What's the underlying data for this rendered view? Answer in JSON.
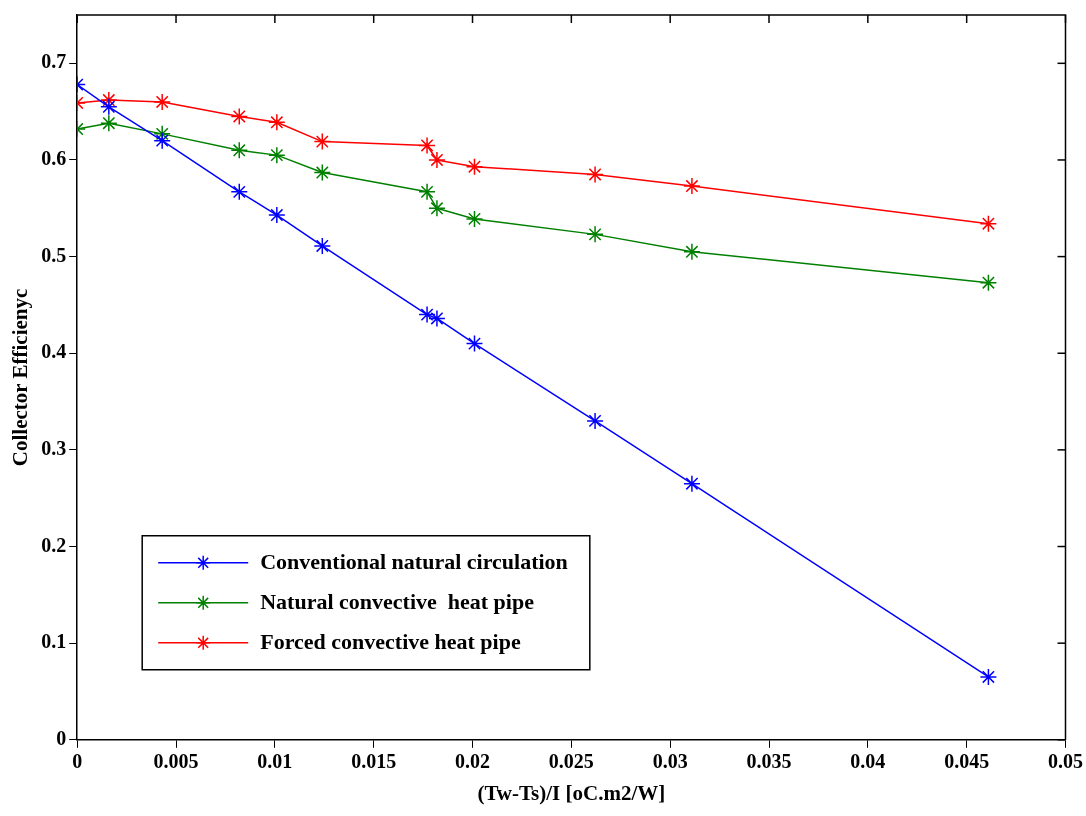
{
  "chart_data": {
    "type": "line",
    "xlabel": "(Tw-Ts)/I [oC.m2/W]",
    "ylabel": "Collector Efficienyc",
    "x": [
      0,
      0.0016,
      0.0043,
      0.0082,
      0.0101,
      0.0124,
      0.0177,
      0.0182,
      0.0201,
      0.0262,
      0.0311,
      0.0461
    ],
    "series": [
      {
        "name": "Conventional natural circulation",
        "color": "#0000ff",
        "values": [
          0.678,
          0.655,
          0.62,
          0.567,
          0.543,
          0.511,
          0.44,
          0.436,
          0.41,
          0.33,
          0.265,
          0.065
        ]
      },
      {
        "name": "Natural convective  heat pipe",
        "color": "#008000",
        "values": [
          0.632,
          0.638,
          0.627,
          0.61,
          0.605,
          0.587,
          0.567,
          0.55,
          0.539,
          0.523,
          0.505,
          0.473
        ]
      },
      {
        "name": "Forced convective heat pipe",
        "color": "#ff0000",
        "values": [
          0.659,
          0.662,
          0.66,
          0.645,
          0.639,
          0.619,
          0.615,
          0.6,
          0.593,
          0.585,
          0.573,
          0.534
        ]
      }
    ],
    "xlim": [
      0,
      0.05
    ],
    "xticks": [
      0,
      0.005,
      0.01,
      0.015,
      0.02,
      0.025,
      0.03,
      0.035,
      0.04,
      0.045,
      0.05
    ],
    "ylim": [
      0,
      0.75
    ],
    "yticks": [
      0,
      0.1,
      0.2,
      0.3,
      0.4,
      0.5,
      0.6,
      0.7
    ],
    "grid": false,
    "legend": "bottom left",
    "marker": "cross",
    "line_style": "solid"
  }
}
